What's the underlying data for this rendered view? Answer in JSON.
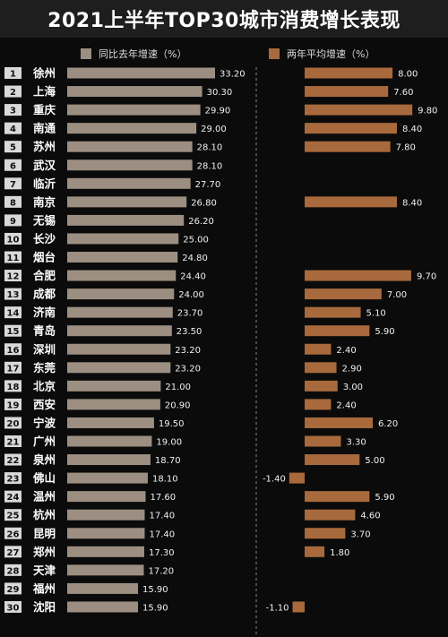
{
  "title": "2021上半年TOP30城市消费增长表现",
  "legend": {
    "left_label": "同比去年增速（%）",
    "right_label": "两年平均增速（%）"
  },
  "colors": {
    "background": "#0b0b0b",
    "title_bar": "#1e1e1e",
    "left_bar": "#9c8f82",
    "right_bar": "#a86a3c",
    "rank_box": "#d9d9d9",
    "divider": "#bbbbbb"
  },
  "chart_data": {
    "type": "bar",
    "title": "2021上半年TOP30城市消费增长表现",
    "categories": [
      "徐州",
      "上海",
      "重庆",
      "南通",
      "苏州",
      "武汉",
      "临沂",
      "南京",
      "无锡",
      "长沙",
      "烟台",
      "合肥",
      "成都",
      "济南",
      "青岛",
      "深圳",
      "东莞",
      "北京",
      "西安",
      "宁波",
      "广州",
      "泉州",
      "佛山",
      "温州",
      "杭州",
      "昆明",
      "郑州",
      "天津",
      "福州",
      "沈阳"
    ],
    "ranks": [
      "1",
      "2",
      "3",
      "4",
      "5",
      "6",
      "7",
      "8",
      "9",
      "10",
      "11",
      "12",
      "13",
      "14",
      "15",
      "16",
      "17",
      "18",
      "19",
      "20",
      "21",
      "22",
      "23",
      "24",
      "25",
      "26",
      "27",
      "28",
      "29",
      "30"
    ],
    "series": [
      {
        "name": "同比去年增速（%）",
        "values": [
          33.2,
          30.3,
          29.9,
          29.0,
          28.1,
          28.1,
          27.7,
          26.8,
          26.2,
          25.0,
          24.8,
          24.4,
          24.0,
          23.7,
          23.5,
          23.2,
          23.2,
          21.0,
          20.9,
          19.5,
          19.0,
          18.7,
          18.1,
          17.6,
          17.4,
          17.4,
          17.3,
          17.2,
          15.9,
          15.9
        ],
        "labels": [
          "33.20",
          "30.30",
          "29.90",
          "29.00",
          "28.10",
          "28.10",
          "27.70",
          "26.80",
          "26.20",
          "25.00",
          "24.80",
          "24.40",
          "24.00",
          "23.70",
          "23.50",
          "23.20",
          "23.20",
          "21.00",
          "20.90",
          "19.50",
          "19.00",
          "18.70",
          "18.10",
          "17.60",
          "17.40",
          "17.40",
          "17.30",
          "17.20",
          "15.90",
          "15.90"
        ]
      },
      {
        "name": "两年平均增速（%）",
        "values": [
          8.0,
          7.6,
          9.8,
          8.4,
          7.8,
          null,
          null,
          8.4,
          null,
          null,
          null,
          9.7,
          7.0,
          5.1,
          5.9,
          2.4,
          2.9,
          3.0,
          2.4,
          6.2,
          3.3,
          5.0,
          -1.4,
          5.9,
          4.6,
          3.7,
          1.8,
          null,
          null,
          -1.1
        ],
        "labels": [
          "8.00",
          "7.60",
          "9.80",
          "8.40",
          "7.80",
          "",
          "",
          "8.40",
          "",
          "",
          "",
          "9.70",
          "7.00",
          "5.10",
          "5.90",
          "2.40",
          "2.90",
          "3.00",
          "2.40",
          "6.20",
          "3.30",
          "5.00",
          "-1.40",
          "5.90",
          "4.60",
          "3.70",
          "1.80",
          "",
          "",
          "-1.10"
        ]
      }
    ]
  }
}
